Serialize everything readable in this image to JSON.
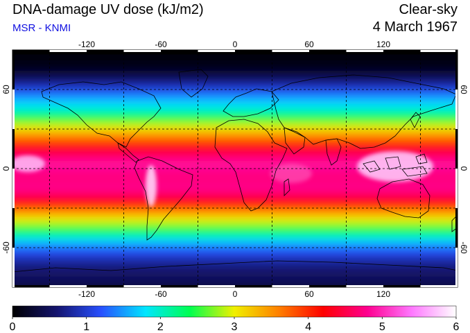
{
  "header": {
    "title": "DNA-damage UV dose (kJ/m2)",
    "source": "MSR - KNMI",
    "condition": "Clear-sky",
    "date": "4 March 1967"
  },
  "map": {
    "projection": "equirectangular",
    "lon_range": [
      -180,
      180
    ],
    "lat_range": [
      -90,
      90
    ],
    "lon_ticks": [
      "-120",
      "-60",
      "0",
      "60",
      "120"
    ],
    "lat_ticks": [
      "60",
      "0",
      "-60"
    ],
    "grid": true,
    "grid_lines_lon": [
      -150,
      -90,
      -30,
      30,
      90,
      150
    ],
    "grid_lines_lat": [
      -60,
      -30,
      0,
      30,
      60
    ],
    "field": "UV dose peaking between 30S and 30N, highest (white/magenta) over Indonesia, western Pacific and the Andes"
  },
  "colorbar": {
    "min": 0,
    "max": 6,
    "tick_labels": [
      "0",
      "1",
      "2",
      "3",
      "4",
      "5",
      "6"
    ],
    "colors": [
      "#000000",
      "#14146e",
      "#2850ff",
      "#00e6ff",
      "#00ff50",
      "#f0f000",
      "#ff8000",
      "#ff0000",
      "#ff0090",
      "#ff78ff",
      "#ffffff"
    ]
  }
}
